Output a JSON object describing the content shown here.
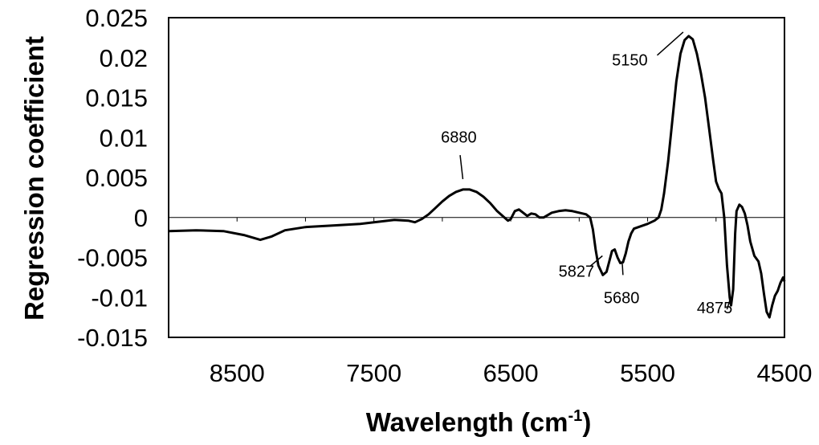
{
  "chart_data": {
    "type": "line",
    "title": "",
    "xlabel": "Wavelength (cm",
    "xlabel_sup": "-1",
    "xlabel_close": ")",
    "ylabel": "Regression coefficient",
    "xlim": [
      9000,
      4500
    ],
    "ylim": [
      -0.015,
      0.025
    ],
    "x_reversed": true,
    "grid": false,
    "zero_line": true,
    "x_ticks": [
      8500,
      7500,
      6500,
      5500,
      4500
    ],
    "x_tick_labels": [
      "8500",
      "7500",
      "6500",
      "5500",
      "4500"
    ],
    "y_ticks": [
      0.025,
      0.02,
      0.015,
      0.01,
      0.005,
      0,
      -0.005,
      -0.01,
      -0.015
    ],
    "y_tick_labels": [
      "0.025",
      "0.02",
      "0.015",
      "0.01",
      "0.005",
      "0",
      "-0.005",
      "-0.01",
      "-0.015"
    ],
    "series": [
      {
        "color": "#000000",
        "points": [
          [
            9000,
            -0.0017
          ],
          [
            8800,
            -0.0016
          ],
          [
            8600,
            -0.0017
          ],
          [
            8450,
            -0.0022
          ],
          [
            8330,
            -0.0028
          ],
          [
            8250,
            -0.0024
          ],
          [
            8150,
            -0.0016
          ],
          [
            8000,
            -0.0012
          ],
          [
            7800,
            -0.001
          ],
          [
            7600,
            -0.0008
          ],
          [
            7450,
            -0.0005
          ],
          [
            7350,
            -0.0003
          ],
          [
            7250,
            -0.0004
          ],
          [
            7200,
            -0.0006
          ],
          [
            7150,
            -0.0002
          ],
          [
            7100,
            0.0004
          ],
          [
            7050,
            0.0012
          ],
          [
            7000,
            0.002
          ],
          [
            6950,
            0.0027
          ],
          [
            6900,
            0.0032
          ],
          [
            6850,
            0.0035
          ],
          [
            6800,
            0.0035
          ],
          [
            6750,
            0.0032
          ],
          [
            6700,
            0.0026
          ],
          [
            6650,
            0.0018
          ],
          [
            6600,
            0.0008
          ],
          [
            6560,
            0.0002
          ],
          [
            6520,
            -0.0004
          ],
          [
            6500,
            -0.0002
          ],
          [
            6470,
            0.0008
          ],
          [
            6440,
            0.001
          ],
          [
            6410,
            0.0006
          ],
          [
            6380,
            0.0002
          ],
          [
            6350,
            0.0005
          ],
          [
            6320,
            0.0004
          ],
          [
            6290,
            0.0
          ],
          [
            6260,
            0.0
          ],
          [
            6230,
            0.0003
          ],
          [
            6200,
            0.0006
          ],
          [
            6150,
            0.0008
          ],
          [
            6100,
            0.0009
          ],
          [
            6050,
            0.0008
          ],
          [
            6000,
            0.0006
          ],
          [
            5950,
            0.0004
          ],
          [
            5920,
            0.0
          ],
          [
            5900,
            -0.0015
          ],
          [
            5880,
            -0.004
          ],
          [
            5860,
            -0.006
          ],
          [
            5827,
            -0.0072
          ],
          [
            5800,
            -0.0068
          ],
          [
            5780,
            -0.0055
          ],
          [
            5760,
            -0.0042
          ],
          [
            5740,
            -0.004
          ],
          [
            5720,
            -0.005
          ],
          [
            5700,
            -0.0057
          ],
          [
            5680,
            -0.0056
          ],
          [
            5660,
            -0.0045
          ],
          [
            5640,
            -0.003
          ],
          [
            5620,
            -0.002
          ],
          [
            5600,
            -0.0014
          ],
          [
            5550,
            -0.0011
          ],
          [
            5500,
            -0.0008
          ],
          [
            5450,
            -0.0004
          ],
          [
            5420,
            0.0
          ],
          [
            5400,
            0.001
          ],
          [
            5380,
            0.003
          ],
          [
            5350,
            0.007
          ],
          [
            5320,
            0.012
          ],
          [
            5290,
            0.017
          ],
          [
            5260,
            0.0205
          ],
          [
            5230,
            0.0222
          ],
          [
            5200,
            0.0227
          ],
          [
            5170,
            0.0223
          ],
          [
            5140,
            0.0205
          ],
          [
            5110,
            0.018
          ],
          [
            5080,
            0.015
          ],
          [
            5050,
            0.011
          ],
          [
            5020,
            0.007
          ],
          [
            5000,
            0.0045
          ],
          [
            4980,
            0.0036
          ],
          [
            4960,
            0.003
          ],
          [
            4940,
            0.0
          ],
          [
            4920,
            -0.006
          ],
          [
            4900,
            -0.01
          ],
          [
            4890,
            -0.011
          ],
          [
            4875,
            -0.009
          ],
          [
            4860,
            -0.002
          ],
          [
            4850,
            0.0008
          ],
          [
            4830,
            0.0016
          ],
          [
            4810,
            0.0013
          ],
          [
            4790,
            0.0005
          ],
          [
            4770,
            -0.001
          ],
          [
            4750,
            -0.003
          ],
          [
            4720,
            -0.0048
          ],
          [
            4690,
            -0.0055
          ],
          [
            4670,
            -0.007
          ],
          [
            4650,
            -0.0095
          ],
          [
            4630,
            -0.0118
          ],
          [
            4610,
            -0.0125
          ],
          [
            4590,
            -0.011
          ],
          [
            4570,
            -0.0098
          ],
          [
            4550,
            -0.0092
          ],
          [
            4530,
            -0.0082
          ],
          [
            4510,
            -0.0075
          ],
          [
            4500,
            -0.008
          ]
        ]
      }
    ],
    "annotations": [
      {
        "text": "6880",
        "pointer": [
          6850,
          0.0048
        ],
        "tail": [
          6870,
          0.0078
        ],
        "label_at": [
          6880,
          0.0101
        ]
      },
      {
        "text": "5150",
        "pointer": [
          5240,
          0.0232
        ],
        "tail": [
          5430,
          0.0203
        ],
        "label_at": [
          5630,
          0.0197
        ]
      },
      {
        "text": "5827",
        "pointer": [
          5830,
          -0.0048
        ],
        "tail": [
          5920,
          -0.0061
        ],
        "label_at": [
          6020,
          -0.0067
        ]
      },
      {
        "text": "5680",
        "pointer": [
          5685,
          -0.0058
        ],
        "tail": [
          5680,
          -0.0072
        ],
        "label_at": [
          5690,
          -0.01
        ]
      },
      {
        "text": "4875",
        "pointer": [
          4900,
          -0.0104
        ],
        "tail": [
          4920,
          -0.0115
        ],
        "label_at": [
          5010,
          -0.0113
        ]
      }
    ]
  }
}
